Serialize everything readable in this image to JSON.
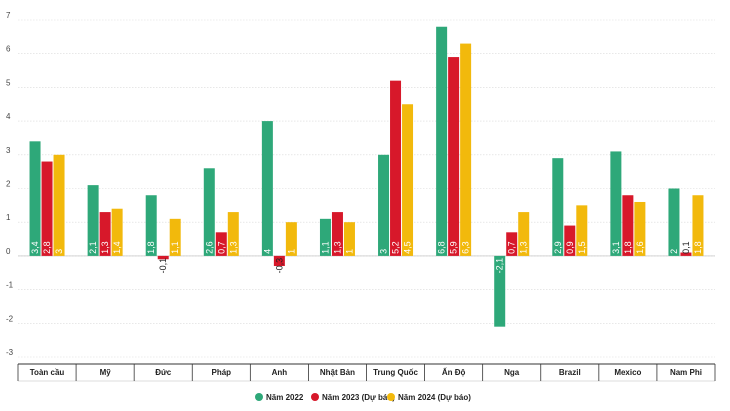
{
  "chart_data": {
    "type": "bar",
    "title": "",
    "xlabel": "",
    "ylabel": "",
    "ylim": [
      -3,
      7
    ],
    "yticks": [
      "7",
      "6",
      "5",
      "4",
      "3",
      "2",
      "1",
      "0",
      "-1",
      "-2",
      "-3"
    ],
    "grid": true,
    "legend_position": "bottom-right",
    "categories": [
      "Toàn cầu",
      "Mỹ",
      "Đức",
      "Pháp",
      "Anh",
      "Nhật Bản",
      "Trung Quốc",
      "Ấn Độ",
      "Nga",
      "Brazil",
      "Mexico",
      "Nam Phi"
    ],
    "series": [
      {
        "name": "Năm 2022",
        "color": "#2ea879",
        "values": [
          3.4,
          2.1,
          1.8,
          2.6,
          4,
          1.1,
          3,
          6.8,
          -2.1,
          2.9,
          3.1,
          2
        ],
        "labels": [
          "3,4",
          "2,1",
          "1,8",
          "2,6",
          "4",
          "1,1",
          "3",
          "6,8",
          "-2,1",
          "2,9",
          "3,1",
          "2"
        ]
      },
      {
        "name": "Năm 2023 (Dự báo)",
        "color": "#d7182a",
        "values": [
          2.8,
          1.3,
          -0.1,
          0.7,
          -0.3,
          1.3,
          5.2,
          5.9,
          0.7,
          0.9,
          1.8,
          0.1
        ],
        "labels": [
          "2,8",
          "1,3",
          "-0,1",
          "0,7",
          "-0,3",
          "1,3",
          "5,2",
          "5,9",
          "0,7",
          "0,9",
          "1,8",
          "0,1"
        ]
      },
      {
        "name": "Năm 2024 (Dự báo)",
        "color": "#f2b90c",
        "values": [
          3,
          1.4,
          1.1,
          1.3,
          1,
          1,
          4.5,
          6.3,
          1.3,
          1.5,
          1.6,
          1.8
        ],
        "labels": [
          "3",
          "1,4",
          "1,1",
          "1,3",
          "1",
          "1",
          "4,5",
          "6,3",
          "1,3",
          "1,5",
          "1,6",
          "1,8"
        ]
      }
    ]
  }
}
